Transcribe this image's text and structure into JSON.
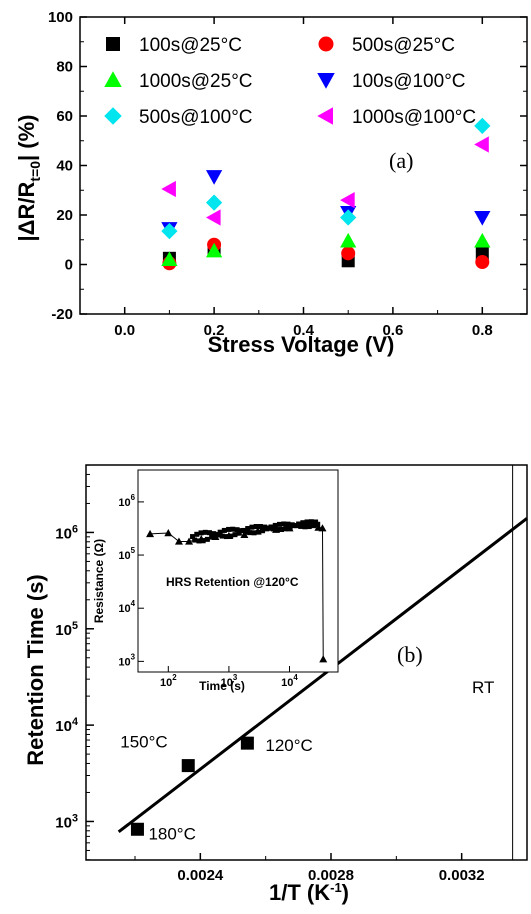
{
  "chart_data": [
    {
      "type": "scatter",
      "panel_label": "(a)",
      "xlabel": "Stress Voltage (V)",
      "ylabel": "|ΔR/R_t=0| (%)",
      "xlim": [
        -0.1,
        0.9
      ],
      "ylim": [
        -20,
        100
      ],
      "xticks": [
        0.0,
        0.2,
        0.4,
        0.6,
        0.8
      ],
      "xtick_labels": [
        "0.0",
        "0.2",
        "0.4",
        "0.6",
        "0.8"
      ],
      "yticks": [
        -20,
        0,
        20,
        40,
        60,
        80,
        100
      ],
      "ytick_labels": [
        "-20",
        "0",
        "20",
        "40",
        "60",
        "80",
        "100"
      ],
      "legend_position": "top",
      "series": [
        {
          "name": "100s@25°C",
          "marker": "square",
          "color": "#000000",
          "x": [
            0.1,
            0.2,
            0.5,
            0.8
          ],
          "y": [
            2.5,
            6.5,
            1.5,
            4.5
          ]
        },
        {
          "name": "500s@25°C",
          "marker": "circle",
          "color": "#ff0000",
          "x": [
            0.1,
            0.2,
            0.5,
            0.8
          ],
          "y": [
            0.5,
            8,
            4.5,
            1
          ]
        },
        {
          "name": "1000s@25°C",
          "marker": "triangle-up",
          "color": "#00ff00",
          "x": [
            0.1,
            0.2,
            0.5,
            0.8
          ],
          "y": [
            2,
            5.5,
            9.5,
            9.5
          ]
        },
        {
          "name": "100s@100°C",
          "marker": "triangle-down",
          "color": "#0000ff",
          "x": [
            0.1,
            0.2,
            0.5,
            0.8
          ],
          "y": [
            14.5,
            35.5,
            21,
            19
          ]
        },
        {
          "name": "500s@100°C",
          "marker": "diamond",
          "color": "#00e5ee",
          "x": [
            0.1,
            0.2,
            0.5,
            0.8
          ],
          "y": [
            13.5,
            25,
            19,
            56
          ]
        },
        {
          "name": "1000s@100°C",
          "marker": "triangle-left",
          "color": "#ff00ff",
          "x": [
            0.1,
            0.2,
            0.5,
            0.8
          ],
          "y": [
            30.5,
            19,
            26,
            48.5
          ]
        }
      ]
    },
    {
      "type": "scatter",
      "panel_label": "(b)",
      "xlabel": "1/T (K-1)",
      "ylabel": "Retention Time (s)",
      "xlim": [
        0.00205,
        0.0034
      ],
      "ylim_log10": [
        2.6,
        6.7
      ],
      "y_scale": "log",
      "xticks": [
        0.0024,
        0.0028,
        0.0032
      ],
      "xtick_labels": [
        "0.0024",
        "0.0028",
        "0.0032"
      ],
      "yticks": [
        1000,
        10000,
        100000,
        1000000
      ],
      "ytick_labels": [
        "10^3",
        "10^4",
        "10^5",
        "10^6"
      ],
      "points": [
        {
          "label": "180°C",
          "x": 0.0022075,
          "y": 830
        },
        {
          "label": "150°C",
          "x": 0.002363,
          "y": 3800
        },
        {
          "label": "120°C",
          "x": 0.002544,
          "y": 6500
        }
      ],
      "fit_line": {
        "x": [
          0.00215,
          0.0034
        ],
        "y": [
          780,
          1400000
        ]
      },
      "rt_line_x": 0.003356,
      "rt_label": "RT",
      "inset": {
        "title": "HRS Retention @120°C",
        "xlabel": "Time (s)",
        "ylabel": "Resistance (Ω)",
        "x_scale": "log",
        "y_scale": "log",
        "xlim_log10": [
          1.5,
          4.8
        ],
        "ylim_log10": [
          2.8,
          6.6
        ],
        "xticks": [
          100,
          1000,
          10000
        ],
        "xtick_labels": [
          "10^2",
          "10^3",
          "10^4"
        ],
        "yticks": [
          1000,
          10000,
          100000,
          1000000
        ],
        "ytick_labels": [
          "10^3",
          "10^4",
          "10^5",
          "10^6"
        ],
        "x": [
          50,
          100,
          150,
          220,
          350,
          600,
          1000,
          1800,
          3000,
          6000,
          10000,
          20000,
          30000,
          35000,
          36000
        ],
        "y": [
          250000,
          260000,
          180000,
          180000,
          200000,
          220000,
          230000,
          240000,
          280000,
          300000,
          320000,
          380000,
          330000,
          320000,
          1100
        ]
      }
    }
  ]
}
